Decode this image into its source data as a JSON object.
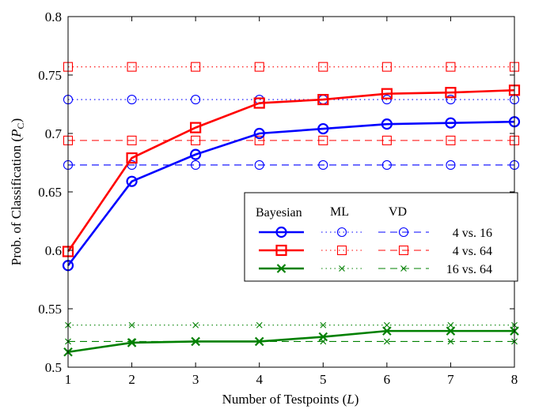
{
  "chart_data": {
    "type": "line",
    "xlabel": "Number of Testpoints (L)",
    "ylabel": "Prob. of Classification (P_C)",
    "xlabel_parts": {
      "main": "Number of Testpoints (",
      "italic": "L",
      "close": ")"
    },
    "ylabel_parts": {
      "main": "Prob. of Classification (",
      "italic": "P",
      "sub": "C",
      "close": ")"
    },
    "xlim": [
      1,
      8
    ],
    "ylim": [
      0.5,
      0.8
    ],
    "xticks": [
      1,
      2,
      3,
      4,
      5,
      6,
      7,
      8
    ],
    "yticks": [
      0.5,
      0.55,
      0.6,
      0.65,
      0.7,
      0.75,
      0.8
    ],
    "ytick_labels": [
      "0.5",
      "0.55",
      "0.6",
      "0.65",
      "0.7",
      "0.75",
      "0.8"
    ],
    "grid": false,
    "legend": {
      "placement": "right",
      "column_headers": [
        "Bayesian",
        "ML",
        "VD"
      ],
      "row_labels": [
        "4 vs. 16",
        "4 vs. 64",
        "16 vs. 64"
      ]
    },
    "x": [
      1,
      2,
      3,
      4,
      5,
      6,
      7,
      8
    ],
    "series": [
      {
        "method": "Bayesian",
        "case": "4 vs. 16",
        "color": "#0000ff",
        "style": "solid",
        "marker": "circle",
        "values": [
          0.587,
          0.659,
          0.682,
          0.7,
          0.704,
          0.708,
          0.709,
          0.71
        ]
      },
      {
        "method": "Bayesian",
        "case": "4 vs. 64",
        "color": "#ff0000",
        "style": "solid",
        "marker": "square",
        "values": [
          0.599,
          0.679,
          0.705,
          0.726,
          0.729,
          0.734,
          0.735,
          0.737
        ]
      },
      {
        "method": "Bayesian",
        "case": "16 vs. 64",
        "color": "#008000",
        "style": "solid",
        "marker": "x",
        "values": [
          0.513,
          0.521,
          0.522,
          0.522,
          0.526,
          0.531,
          0.531,
          0.531
        ]
      },
      {
        "method": "ML",
        "case": "4 vs. 16",
        "color": "#0000ff",
        "style": "dotted",
        "marker": "circle",
        "values": [
          0.729,
          0.729,
          0.729,
          0.729,
          0.729,
          0.729,
          0.729,
          0.729
        ]
      },
      {
        "method": "ML",
        "case": "4 vs. 64",
        "color": "#ff0000",
        "style": "dotted",
        "marker": "square",
        "values": [
          0.757,
          0.757,
          0.757,
          0.757,
          0.757,
          0.757,
          0.757,
          0.757
        ]
      },
      {
        "method": "ML",
        "case": "16 vs. 64",
        "color": "#008000",
        "style": "dotted",
        "marker": "x",
        "values": [
          0.536,
          0.536,
          0.536,
          0.536,
          0.536,
          0.536,
          0.536,
          0.536
        ]
      },
      {
        "method": "VD",
        "case": "4 vs. 16",
        "color": "#0000ff",
        "style": "dashed",
        "marker": "circle",
        "values": [
          0.673,
          0.673,
          0.673,
          0.673,
          0.673,
          0.673,
          0.673,
          0.673
        ]
      },
      {
        "method": "VD",
        "case": "4 vs. 64",
        "color": "#ff0000",
        "style": "dashed",
        "marker": "square",
        "values": [
          0.694,
          0.694,
          0.694,
          0.694,
          0.694,
          0.694,
          0.694,
          0.694
        ]
      },
      {
        "method": "VD",
        "case": "16 vs. 64",
        "color": "#008000",
        "style": "dashed",
        "marker": "x",
        "values": [
          0.522,
          0.522,
          0.522,
          0.522,
          0.522,
          0.522,
          0.522,
          0.522
        ]
      }
    ]
  }
}
